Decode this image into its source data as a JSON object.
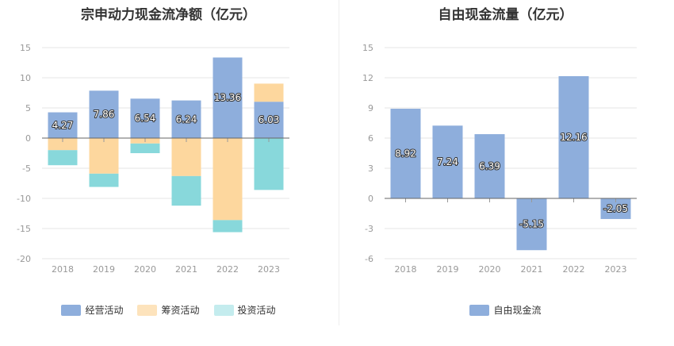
{
  "chart_data": [
    {
      "type": "bar",
      "stacked": true,
      "title": "宗申动力现金流净额（亿元）",
      "categories": [
        "2018",
        "2019",
        "2020",
        "2021",
        "2022",
        "2023"
      ],
      "series": [
        {
          "name": "经营活动",
          "color": "#8eaedc",
          "values": [
            4.27,
            7.86,
            6.54,
            6.24,
            13.36,
            6.03
          ]
        },
        {
          "name": "筹资活动",
          "color": "#fdd79e",
          "values": [
            -2.0,
            -5.9,
            -0.9,
            -6.3,
            -13.6,
            3.0
          ]
        },
        {
          "name": "投资活动",
          "color": "#88d8db",
          "values": [
            -2.5,
            -2.2,
            -1.6,
            -4.9,
            -2.0,
            -8.6
          ]
        }
      ],
      "data_labels": [
        "4.27",
        "7.86",
        "6.54",
        "6.24",
        "13.36",
        "6.03"
      ],
      "ylim": [
        -20,
        15
      ],
      "yticks": [
        "15",
        "10",
        "5",
        "0",
        "-5",
        "-10",
        "-15",
        "-20"
      ],
      "ytick_values": [
        15,
        10,
        5,
        0,
        -5,
        -10,
        -15,
        -20
      ],
      "grid": true,
      "legend": "bottom"
    },
    {
      "type": "bar",
      "title": "自由现金流量（亿元）",
      "categories": [
        "2018",
        "2019",
        "2020",
        "2021",
        "2022",
        "2023"
      ],
      "series": [
        {
          "name": "自由现金流",
          "color": "#8eaedc",
          "values": [
            8.92,
            7.24,
            6.39,
            -5.15,
            12.16,
            -2.05
          ]
        }
      ],
      "data_labels": [
        "8.92",
        "7.24",
        "6.39",
        "-5.15",
        "12.16",
        "-2.05"
      ],
      "ylim": [
        -6,
        15
      ],
      "yticks": [
        "15",
        "12",
        "9",
        "6",
        "3",
        "0",
        "-3",
        "-6"
      ],
      "ytick_values": [
        15,
        12,
        9,
        6,
        3,
        0,
        -3,
        -6
      ],
      "grid": true,
      "legend": "bottom"
    }
  ]
}
